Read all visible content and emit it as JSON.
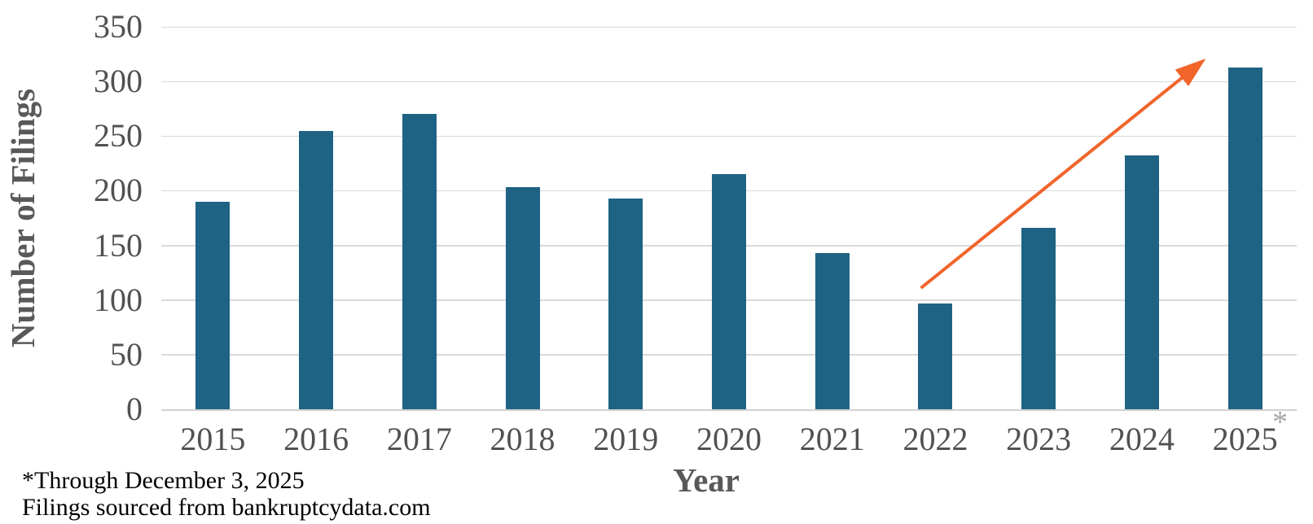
{
  "chart_data": {
    "type": "bar",
    "title": "",
    "categories": [
      "2015",
      "2016",
      "2017",
      "2018",
      "2019",
      "2020",
      "2021",
      "2022",
      "2023",
      "2024",
      "2025"
    ],
    "values": [
      190,
      255,
      270,
      203,
      193,
      215,
      143,
      97,
      166,
      232,
      313
    ],
    "xlabel": "Year",
    "ylabel": "Number of Filings",
    "ylim": [
      0,
      350
    ],
    "yticks": [
      0,
      50,
      100,
      150,
      200,
      250,
      300,
      350
    ],
    "grid": true,
    "legend": "none",
    "bar_color": "#1E6384",
    "gridline_color": "#D9D9D9",
    "axis_line_color": "#D2D0D0",
    "tick_label_color": "#515151",
    "axis_title_color": "#595959",
    "annotations": {
      "trend_arrow": {
        "type": "arrow",
        "color": "#F1652B",
        "from": {
          "year": "2022",
          "value": 111
        },
        "to": {
          "year": "2025",
          "value": 321
        }
      },
      "asterisk_label": "*",
      "asterisk_color": "#A6A6A6",
      "asterisk_attached_to": "2025"
    }
  },
  "footnotes": {
    "line1": "*Through December 3, 2025",
    "line2": "Filings sourced from bankruptcydata.com"
  }
}
